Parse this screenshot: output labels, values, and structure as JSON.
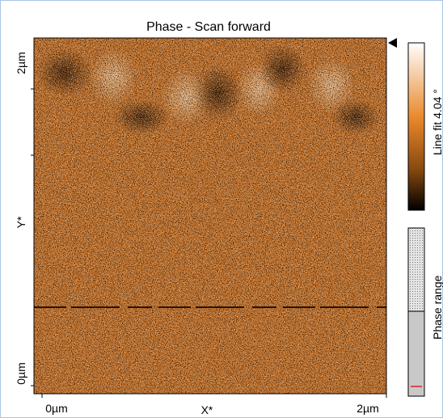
{
  "title": "Phase - Scan forward",
  "y_axis": {
    "top": "2µm",
    "label": "Y*",
    "bottom": "0µm"
  },
  "x_axis": {
    "left": "0µm",
    "label": "X*",
    "right": "2µm"
  },
  "colorbar": {
    "label": "Line fit 4.04 °"
  },
  "range_bar": {
    "label": "Phase range"
  }
}
